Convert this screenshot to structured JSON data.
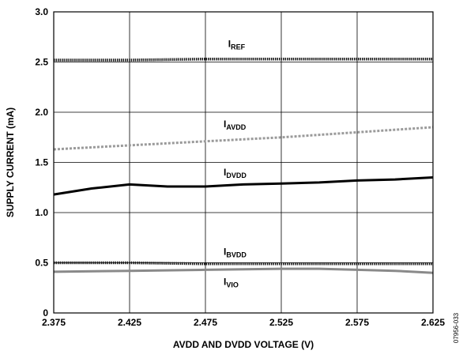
{
  "chart_data": {
    "type": "line",
    "xlabel": "AVDD AND DVDD VOLTAGE (V)",
    "ylabel": "SUPPLY CURRENT (mA)",
    "xlim": [
      2.375,
      2.625
    ],
    "ylim": [
      0,
      3.0
    ],
    "x_ticks": [
      "2.375",
      "2.425",
      "2.475",
      "2.525",
      "2.575",
      "2.625"
    ],
    "y_ticks": [
      "0",
      "0.5",
      "1.0",
      "1.5",
      "2.0",
      "2.5",
      "3.0"
    ],
    "grid": true,
    "legend": "inline labels",
    "figure_id": "07956-033",
    "series": [
      {
        "name": "I",
        "subscript": "REF",
        "color": "#1a1a1a",
        "style": "dotted-bold",
        "label_x": 2.49,
        "label_y": 2.65,
        "x": [
          2.375,
          2.425,
          2.475,
          2.525,
          2.575,
          2.625
        ],
        "y": [
          2.52,
          2.52,
          2.53,
          2.53,
          2.53,
          2.53
        ]
      },
      {
        "name": "I",
        "subscript": "AVDD",
        "color": "#9a9a9a",
        "style": "dashed",
        "label_x": 2.487,
        "label_y": 1.85,
        "x": [
          2.375,
          2.425,
          2.475,
          2.525,
          2.575,
          2.625
        ],
        "y": [
          1.63,
          1.67,
          1.71,
          1.75,
          1.8,
          1.85
        ]
      },
      {
        "name": "I",
        "subscript": "DVDD",
        "color": "#000000",
        "style": "solid",
        "label_x": 2.487,
        "label_y": 1.37,
        "x": [
          2.375,
          2.4,
          2.425,
          2.45,
          2.475,
          2.5,
          2.525,
          2.55,
          2.575,
          2.6,
          2.625
        ],
        "y": [
          1.18,
          1.24,
          1.28,
          1.26,
          1.26,
          1.28,
          1.29,
          1.3,
          1.32,
          1.33,
          1.35
        ]
      },
      {
        "name": "I",
        "subscript": "BVDD",
        "color": "#1a1a1a",
        "style": "dotted-bold",
        "label_x": 2.487,
        "label_y": 0.58,
        "x": [
          2.375,
          2.425,
          2.475,
          2.525,
          2.575,
          2.625
        ],
        "y": [
          0.5,
          0.5,
          0.49,
          0.49,
          0.49,
          0.49
        ]
      },
      {
        "name": "I",
        "subscript": "VIO",
        "color": "#8a8a8a",
        "style": "solid",
        "label_x": 2.487,
        "label_y": 0.28,
        "x": [
          2.375,
          2.425,
          2.475,
          2.525,
          2.55,
          2.575,
          2.6,
          2.625
        ],
        "y": [
          0.41,
          0.42,
          0.43,
          0.44,
          0.44,
          0.43,
          0.42,
          0.4
        ]
      }
    ]
  }
}
